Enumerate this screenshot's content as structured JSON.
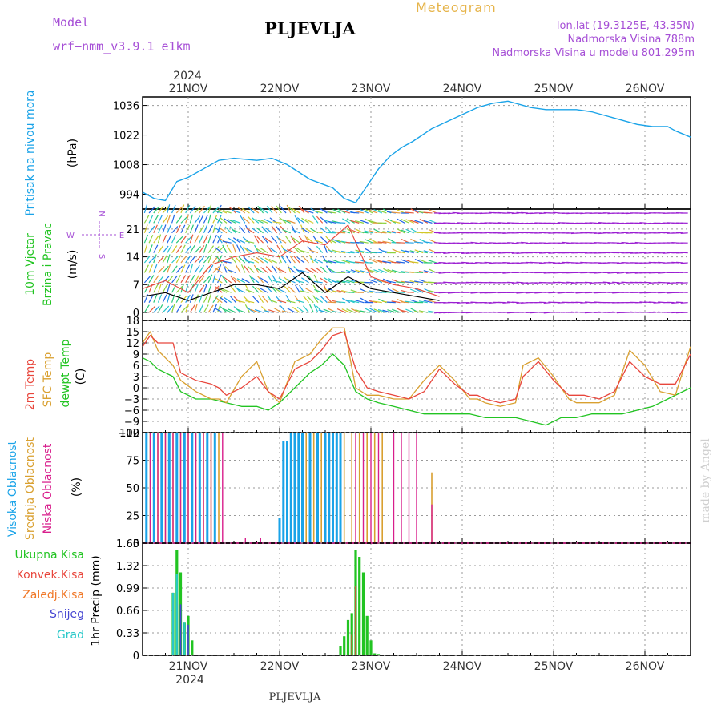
{
  "header": {
    "model_label": "Model",
    "model_name": "wrf−nmm_v3.9.1  e1km",
    "station": "PLJEVLJA",
    "product": "Meteogram",
    "lonlat": "lon,lat (19.3125E, 43.35N)",
    "elevation": "Nadmorska Visina 788m",
    "model_elevation": "Nadmorska Visina u modelu 801.295m",
    "year_top": "2024",
    "year_bottom": "2024",
    "footer_station": "PLJEVLJA",
    "credit": "made by Angel"
  },
  "days": [
    "21NOV",
    "22NOV",
    "23NOV",
    "24NOV",
    "25NOV",
    "26NOV"
  ],
  "colors": {
    "pressure": "#1aa3e8",
    "temp2m": "#e8463c",
    "sfc": "#d9a030",
    "dewpt": "#22c422",
    "high_cloud": "#1aa3e8",
    "mid_cloud": "#d9a030",
    "low_cloud": "#d81e8c",
    "total_precip": "#22c422",
    "conv_precip": "#e8463c",
    "frozen": "#f07828",
    "snow": "#4646d2",
    "hail": "#28c8c8",
    "wind_old": "#9b1ed2",
    "speed_line": "#000000",
    "gust_line": "#e8463c"
  },
  "chart_data": [
    {
      "type": "line",
      "name": "pressure-panel",
      "ylabel_left": "Pritisak na nivou mora",
      "ylabel_unit": "(hPa)",
      "yticks": [
        994,
        1008,
        1022,
        1036
      ],
      "ylim": [
        987,
        1040
      ],
      "x_unit": "hours since 20NOV 12UTC",
      "xlim": [
        0,
        144
      ],
      "series": [
        {
          "x": [
            0,
            3,
            6,
            9,
            12,
            16,
            20,
            24,
            30,
            34,
            38,
            44,
            47,
            50,
            53,
            56,
            59,
            62,
            65,
            68,
            71,
            76,
            82,
            88,
            92,
            96,
            102,
            106,
            110,
            114,
            118,
            124,
            130,
            134,
            138,
            140,
            144
          ],
          "y": [
            995,
            992,
            991,
            1000,
            1002,
            1006,
            1010,
            1011,
            1010,
            1011,
            1008,
            1001,
            999,
            997,
            992,
            990,
            998,
            1006,
            1012,
            1016,
            1019,
            1025,
            1030,
            1035,
            1037,
            1038,
            1035,
            1034,
            1034,
            1034,
            1033,
            1030,
            1027,
            1026,
            1026,
            1024,
            1021
          ]
        }
      ]
    },
    {
      "type": "line",
      "name": "wind-panel",
      "ylabel_left": [
        "10m Vjetar",
        "Brzina i Pravac"
      ],
      "ylabel_unit": "(m/s)",
      "compass": [
        "W",
        "N",
        "E",
        "S"
      ],
      "yticks": [
        0,
        7,
        14,
        21
      ],
      "ylim": [
        -2,
        26
      ],
      "xlim": [
        0,
        144
      ],
      "series": [
        {
          "name": "speed",
          "x": [
            0,
            6,
            12,
            18,
            24,
            30,
            36,
            42,
            48,
            54,
            60,
            66,
            72,
            78
          ],
          "y": [
            4,
            5,
            3,
            5,
            7,
            7,
            6,
            10,
            5,
            9,
            6,
            5,
            4,
            3
          ]
        },
        {
          "name": "gust",
          "x": [
            0,
            6,
            12,
            18,
            24,
            30,
            36,
            42,
            48,
            54,
            60,
            66,
            72,
            78
          ],
          "y": [
            6,
            8,
            5,
            12,
            14,
            15,
            14,
            18,
            17,
            22,
            9,
            7,
            6,
            4
          ]
        }
      ]
    },
    {
      "type": "line",
      "name": "temperature-panel",
      "ylabel_left": [
        "2m Temp",
        "SFC Temp",
        "dewpt Temp"
      ],
      "ylabel_unit": "(C)",
      "yticks": [
        -12,
        -9,
        -6,
        -3,
        0,
        3,
        6,
        9,
        12,
        15,
        18
      ],
      "ylim": [
        -12,
        18
      ],
      "xlim": [
        0,
        144
      ],
      "series": [
        {
          "name": "2m Temp",
          "x": [
            0,
            2,
            4,
            8,
            10,
            14,
            18,
            20,
            22,
            26,
            30,
            33,
            36,
            40,
            44,
            47,
            50,
            53,
            56,
            59,
            62,
            66,
            70,
            74,
            78,
            82,
            86,
            88,
            90,
            94,
            98,
            100,
            104,
            108,
            112,
            114,
            116,
            120,
            124,
            128,
            132,
            136,
            140,
            144
          ],
          "y": [
            11,
            14,
            12,
            12,
            4,
            2,
            1,
            0,
            -2,
            0,
            3,
            -1,
            -3,
            5,
            7,
            10,
            14,
            15,
            5,
            0,
            -1,
            -2,
            -3,
            -1,
            5,
            1,
            -2,
            -2,
            -3,
            -4,
            -3,
            3,
            7,
            2,
            -2,
            -2,
            -2,
            -3,
            -1,
            7,
            3,
            1,
            1,
            9
          ]
        },
        {
          "name": "SFC Temp",
          "x": [
            0,
            2,
            4,
            6,
            8,
            10,
            14,
            18,
            20,
            22,
            26,
            30,
            33,
            36,
            40,
            44,
            47,
            50,
            53,
            56,
            59,
            62,
            66,
            70,
            74,
            78,
            82,
            86,
            88,
            90,
            94,
            98,
            100,
            104,
            108,
            112,
            114,
            116,
            120,
            124,
            128,
            132,
            136,
            140,
            144
          ],
          "y": [
            12,
            15,
            10,
            8,
            6,
            2,
            -1,
            -3,
            -3,
            -4,
            3,
            7,
            -1,
            -4,
            7,
            9,
            13,
            16,
            16,
            0,
            -2,
            -2,
            -3,
            -3,
            2,
            6,
            2,
            -3,
            -3,
            -4,
            -5,
            -4,
            6,
            8,
            3,
            -3,
            -4,
            -4,
            -4,
            -2,
            10,
            6,
            -1,
            -2,
            11
          ]
        },
        {
          "name": "dewpt Temp",
          "x": [
            0,
            2,
            4,
            8,
            10,
            14,
            18,
            22,
            26,
            30,
            33,
            36,
            40,
            44,
            47,
            50,
            53,
            56,
            59,
            62,
            66,
            70,
            74,
            78,
            82,
            86,
            90,
            94,
            98,
            102,
            106,
            110,
            114,
            118,
            122,
            126,
            130,
            134,
            138,
            144
          ],
          "y": [
            8,
            7,
            5,
            3,
            -1,
            -3,
            -3,
            -4,
            -5,
            -5,
            -6,
            -4,
            0,
            4,
            6,
            9,
            6,
            -1,
            -3,
            -4,
            -5,
            -6,
            -7,
            -7,
            -7,
            -7,
            -8,
            -8,
            -8,
            -9,
            -10,
            -8,
            -8,
            -7,
            -7,
            -7,
            -6,
            -5,
            -3,
            0
          ]
        }
      ]
    },
    {
      "type": "bar",
      "name": "cloud-panel",
      "ylabel_left": [
        "Visoka Oblacnost",
        "Srednja Oblacnost",
        "Niska Oblacnost"
      ],
      "ylabel_unit": "(%)",
      "yticks": [
        0,
        25,
        50,
        75,
        100
      ],
      "ylim": [
        0,
        100
      ],
      "xlim": [
        0,
        144
      ],
      "series": [
        {
          "name": "Visoka Oblacnost",
          "x": [
            1,
            3,
            5,
            7,
            9,
            11,
            13,
            15,
            17,
            19,
            36,
            37,
            38,
            39,
            40,
            41,
            42,
            44,
            46,
            48,
            49,
            50,
            51,
            52
          ],
          "y": [
            100,
            100,
            100,
            100,
            100,
            100,
            100,
            100,
            100,
            100,
            23,
            92,
            92,
            100,
            100,
            100,
            100,
            100,
            100,
            100,
            100,
            100,
            100,
            100
          ]
        },
        {
          "name": "Srednja Oblacnost",
          "x": [
            2,
            4,
            6,
            8,
            10,
            12,
            14,
            16,
            18,
            20,
            43,
            45,
            47,
            53,
            55,
            57,
            59,
            61,
            63,
            76
          ],
          "y": [
            100,
            100,
            100,
            100,
            100,
            100,
            100,
            100,
            100,
            100,
            100,
            100,
            100,
            100,
            100,
            100,
            100,
            100,
            100,
            64
          ]
        },
        {
          "name": "Niska Oblacnost",
          "x": [
            2,
            4,
            6,
            8,
            10,
            12,
            14,
            16,
            18,
            21,
            27,
            31,
            56,
            58,
            60,
            62,
            66,
            68,
            70,
            72,
            76
          ],
          "y": [
            100,
            100,
            100,
            100,
            100,
            100,
            100,
            100,
            100,
            100,
            5,
            5,
            100,
            100,
            100,
            100,
            100,
            100,
            100,
            100,
            35
          ]
        }
      ]
    },
    {
      "type": "bar",
      "name": "precip-panel",
      "ylabel_left": [
        "Ukupna  Kisa",
        "Konvek.Kisa",
        "Zaledj.Kisa",
        "Snijeg",
        "Grad"
      ],
      "ylabel_unit": "1hr Precip (mm)",
      "yticks": [
        0,
        0.33,
        0.66,
        0.99,
        1.32,
        1.65
      ],
      "ylim": [
        0,
        1.65
      ],
      "xlim": [
        0,
        144
      ],
      "series": [
        {
          "name": "Ukupna Kisa",
          "x": [
            8,
            9,
            10,
            11,
            12,
            13,
            52,
            53,
            54,
            55,
            56,
            57,
            58,
            59,
            60,
            61,
            62
          ],
          "y": [
            0.92,
            1.55,
            1.22,
            0.48,
            0.58,
            0.22,
            0.13,
            0.28,
            0.52,
            0.62,
            1.55,
            1.45,
            1.22,
            0.58,
            0.22,
            0.03,
            0.02
          ]
        },
        {
          "name": "Snijeg",
          "x": [
            8,
            10,
            12
          ],
          "y": [
            0.55,
            0.75,
            0.45
          ]
        },
        {
          "name": "Grad",
          "x": [
            8,
            9,
            11
          ],
          "y": [
            0.92,
            1.2,
            0.48
          ]
        },
        {
          "name": "Konvek.Kisa",
          "x": [
            55,
            56
          ],
          "y": [
            0.3,
            1.02
          ]
        }
      ]
    }
  ]
}
